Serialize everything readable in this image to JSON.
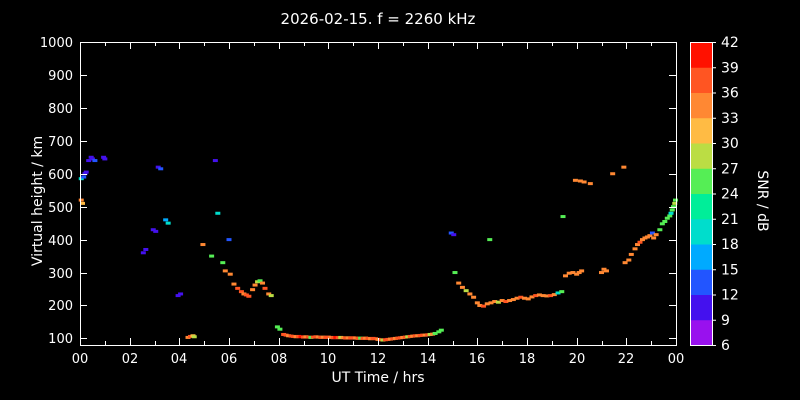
{
  "title": "2026-02-15. f = 2260 kHz",
  "chart_data": {
    "type": "scatter",
    "title": "2026-02-15. f = 2260 kHz",
    "xlabel": "UT Time / hrs",
    "ylabel": "Virtual height / km",
    "xlim": [
      0,
      24
    ],
    "ylim": [
      80,
      1000
    ],
    "x_ticks": [
      0,
      2,
      4,
      6,
      8,
      10,
      12,
      14,
      16,
      18,
      20,
      22,
      24
    ],
    "x_tick_labels": [
      "00",
      "02",
      "04",
      "06",
      "08",
      "10",
      "12",
      "14",
      "16",
      "18",
      "20",
      "22",
      "00"
    ],
    "y_ticks": [
      100,
      200,
      300,
      400,
      500,
      600,
      700,
      800,
      900,
      1000
    ],
    "grid": false,
    "colorbar": {
      "label": "SNR / dB",
      "min": 6,
      "max": 42,
      "ticks": [
        6,
        9,
        12,
        15,
        18,
        21,
        24,
        27,
        30,
        33,
        36,
        39,
        42
      ],
      "colors": [
        "#9911ee",
        "#4411ee",
        "#2255ff",
        "#00aaff",
        "#00ddcc",
        "#00ee99",
        "#55ee55",
        "#bbdd44",
        "#ffbb44",
        "#ff8833",
        "#ff5522",
        "#ff1100"
      ]
    },
    "points": [
      [
        0.05,
        520,
        33
      ],
      [
        0.1,
        510,
        30
      ],
      [
        0.05,
        585,
        19
      ],
      [
        0.15,
        590,
        13
      ],
      [
        0.2,
        600,
        11
      ],
      [
        0.25,
        605,
        11
      ],
      [
        0.35,
        640,
        11
      ],
      [
        0.45,
        650,
        10
      ],
      [
        0.5,
        645,
        11
      ],
      [
        0.6,
        640,
        13
      ],
      [
        0.95,
        650,
        11
      ],
      [
        1.0,
        645,
        10
      ],
      [
        2.55,
        360,
        11
      ],
      [
        2.65,
        370,
        10
      ],
      [
        2.95,
        430,
        11
      ],
      [
        3.05,
        425,
        10
      ],
      [
        3.15,
        620,
        11
      ],
      [
        3.25,
        615,
        12
      ],
      [
        3.45,
        460,
        17
      ],
      [
        3.55,
        450,
        18
      ],
      [
        3.95,
        230,
        11
      ],
      [
        4.05,
        235,
        10
      ],
      [
        4.35,
        103,
        34
      ],
      [
        4.45,
        106,
        37
      ],
      [
        4.55,
        108,
        31
      ],
      [
        4.6,
        105,
        28
      ],
      [
        4.95,
        385,
        33
      ],
      [
        5.45,
        640,
        11
      ],
      [
        5.55,
        480,
        18
      ],
      [
        5.3,
        350,
        25
      ],
      [
        5.75,
        330,
        26
      ],
      [
        5.85,
        305,
        33
      ],
      [
        6.0,
        400,
        12
      ],
      [
        6.05,
        295,
        34
      ],
      [
        6.2,
        265,
        34
      ],
      [
        6.35,
        252,
        36
      ],
      [
        6.5,
        242,
        37
      ],
      [
        6.6,
        235,
        35
      ],
      [
        6.7,
        232,
        38
      ],
      [
        6.8,
        228,
        36
      ],
      [
        6.95,
        248,
        34
      ],
      [
        7.05,
        262,
        33
      ],
      [
        7.15,
        272,
        27
      ],
      [
        7.25,
        275,
        26
      ],
      [
        7.35,
        268,
        33
      ],
      [
        7.45,
        252,
        36
      ],
      [
        7.6,
        235,
        34
      ],
      [
        7.7,
        230,
        28
      ],
      [
        7.95,
        135,
        26
      ],
      [
        8.05,
        128,
        25
      ],
      [
        8.2,
        112,
        36
      ],
      [
        8.3,
        110,
        37
      ],
      [
        8.4,
        108,
        34
      ],
      [
        8.5,
        107,
        38
      ],
      [
        8.6,
        106,
        36
      ],
      [
        8.7,
        105,
        33
      ],
      [
        8.8,
        106,
        37
      ],
      [
        8.9,
        105,
        39
      ],
      [
        9.0,
        104,
        36
      ],
      [
        9.1,
        105,
        34
      ],
      [
        9.2,
        104,
        37
      ],
      [
        9.3,
        103,
        26
      ],
      [
        9.4,
        104,
        36
      ],
      [
        9.5,
        105,
        38
      ],
      [
        9.6,
        104,
        35
      ],
      [
        9.7,
        103,
        37
      ],
      [
        9.8,
        104,
        33
      ],
      [
        9.9,
        103,
        36
      ],
      [
        10.0,
        104,
        38
      ],
      [
        10.1,
        103,
        34
      ],
      [
        10.2,
        102,
        37
      ],
      [
        10.3,
        103,
        39
      ],
      [
        10.4,
        102,
        36
      ],
      [
        10.5,
        103,
        27
      ],
      [
        10.6,
        102,
        35
      ],
      [
        10.7,
        101,
        37
      ],
      [
        10.8,
        102,
        34
      ],
      [
        10.9,
        101,
        36
      ],
      [
        11.0,
        102,
        38
      ],
      [
        11.1,
        101,
        35
      ],
      [
        11.2,
        100,
        37
      ],
      [
        11.3,
        101,
        26
      ],
      [
        11.4,
        100,
        36
      ],
      [
        11.5,
        101,
        34
      ],
      [
        11.6,
        100,
        37
      ],
      [
        11.7,
        99,
        35
      ],
      [
        11.8,
        100,
        38
      ],
      [
        11.9,
        99,
        36
      ],
      [
        12.0,
        97,
        34
      ],
      [
        12.1,
        96,
        37
      ],
      [
        12.2,
        95,
        28
      ],
      [
        12.3,
        96,
        36
      ],
      [
        12.4,
        97,
        38
      ],
      [
        12.5,
        98,
        35
      ],
      [
        12.6,
        99,
        37
      ],
      [
        12.7,
        100,
        34
      ],
      [
        12.8,
        101,
        36
      ],
      [
        12.9,
        102,
        38
      ],
      [
        13.0,
        103,
        35
      ],
      [
        13.1,
        104,
        37
      ],
      [
        13.2,
        105,
        27
      ],
      [
        13.3,
        106,
        36
      ],
      [
        13.4,
        107,
        34
      ],
      [
        13.5,
        108,
        37
      ],
      [
        13.6,
        108,
        35
      ],
      [
        13.7,
        109,
        38
      ],
      [
        13.8,
        110,
        36
      ],
      [
        13.9,
        110,
        34
      ],
      [
        14.0,
        111,
        37
      ],
      [
        14.1,
        112,
        28
      ],
      [
        14.2,
        113,
        35
      ],
      [
        14.3,
        115,
        26
      ],
      [
        14.45,
        120,
        25
      ],
      [
        14.55,
        125,
        24
      ],
      [
        14.95,
        420,
        12
      ],
      [
        15.05,
        415,
        11
      ],
      [
        15.1,
        300,
        26
      ],
      [
        15.25,
        268,
        33
      ],
      [
        15.4,
        255,
        34
      ],
      [
        15.55,
        245,
        27
      ],
      [
        15.7,
        235,
        34
      ],
      [
        15.85,
        225,
        33
      ],
      [
        16.0,
        208,
        35
      ],
      [
        16.1,
        200,
        33
      ],
      [
        16.25,
        198,
        36
      ],
      [
        16.4,
        205,
        34
      ],
      [
        16.5,
        400,
        26
      ],
      [
        16.55,
        208,
        33
      ],
      [
        16.7,
        212,
        35
      ],
      [
        16.85,
        210,
        27
      ],
      [
        17.0,
        215,
        34
      ],
      [
        17.15,
        212,
        36
      ],
      [
        17.3,
        215,
        33
      ],
      [
        17.45,
        218,
        35
      ],
      [
        17.6,
        222,
        34
      ],
      [
        17.75,
        225,
        36
      ],
      [
        17.9,
        222,
        33
      ],
      [
        18.05,
        220,
        35
      ],
      [
        18.2,
        226,
        34
      ],
      [
        18.35,
        230,
        36
      ],
      [
        18.5,
        232,
        33
      ],
      [
        18.65,
        230,
        35
      ],
      [
        18.8,
        229,
        34
      ],
      [
        18.95,
        230,
        36
      ],
      [
        19.1,
        233,
        33
      ],
      [
        19.25,
        238,
        20
      ],
      [
        19.4,
        242,
        26
      ],
      [
        19.45,
        470,
        25
      ],
      [
        19.55,
        290,
        33
      ],
      [
        19.7,
        298,
        34
      ],
      [
        19.85,
        300,
        33
      ],
      [
        20.0,
        295,
        35
      ],
      [
        19.95,
        580,
        33
      ],
      [
        20.15,
        578,
        34
      ],
      [
        20.3,
        575,
        33
      ],
      [
        20.55,
        570,
        34
      ],
      [
        20.1,
        300,
        34
      ],
      [
        20.2,
        305,
        33
      ],
      [
        21.0,
        300,
        34
      ],
      [
        21.1,
        310,
        33
      ],
      [
        21.2,
        305,
        35
      ],
      [
        21.45,
        600,
        33
      ],
      [
        21.9,
        620,
        34
      ],
      [
        21.95,
        330,
        33
      ],
      [
        22.1,
        338,
        34
      ],
      [
        22.2,
        355,
        35
      ],
      [
        22.35,
        372,
        33
      ],
      [
        22.45,
        385,
        34
      ],
      [
        22.55,
        392,
        36
      ],
      [
        22.65,
        400,
        34
      ],
      [
        22.75,
        405,
        33
      ],
      [
        22.85,
        408,
        35
      ],
      [
        22.95,
        412,
        34
      ],
      [
        23.05,
        420,
        12
      ],
      [
        23.1,
        405,
        33
      ],
      [
        23.2,
        415,
        34
      ],
      [
        23.35,
        430,
        26
      ],
      [
        23.45,
        448,
        25
      ],
      [
        23.55,
        455,
        26
      ],
      [
        23.65,
        465,
        24
      ],
      [
        23.75,
        472,
        25
      ],
      [
        23.8,
        480,
        18
      ],
      [
        23.85,
        490,
        26
      ],
      [
        23.9,
        500,
        25
      ],
      [
        23.95,
        510,
        27
      ],
      [
        23.98,
        520,
        26
      ]
    ]
  },
  "colors": {
    "background": "#000000",
    "foreground": "#ffffff"
  }
}
